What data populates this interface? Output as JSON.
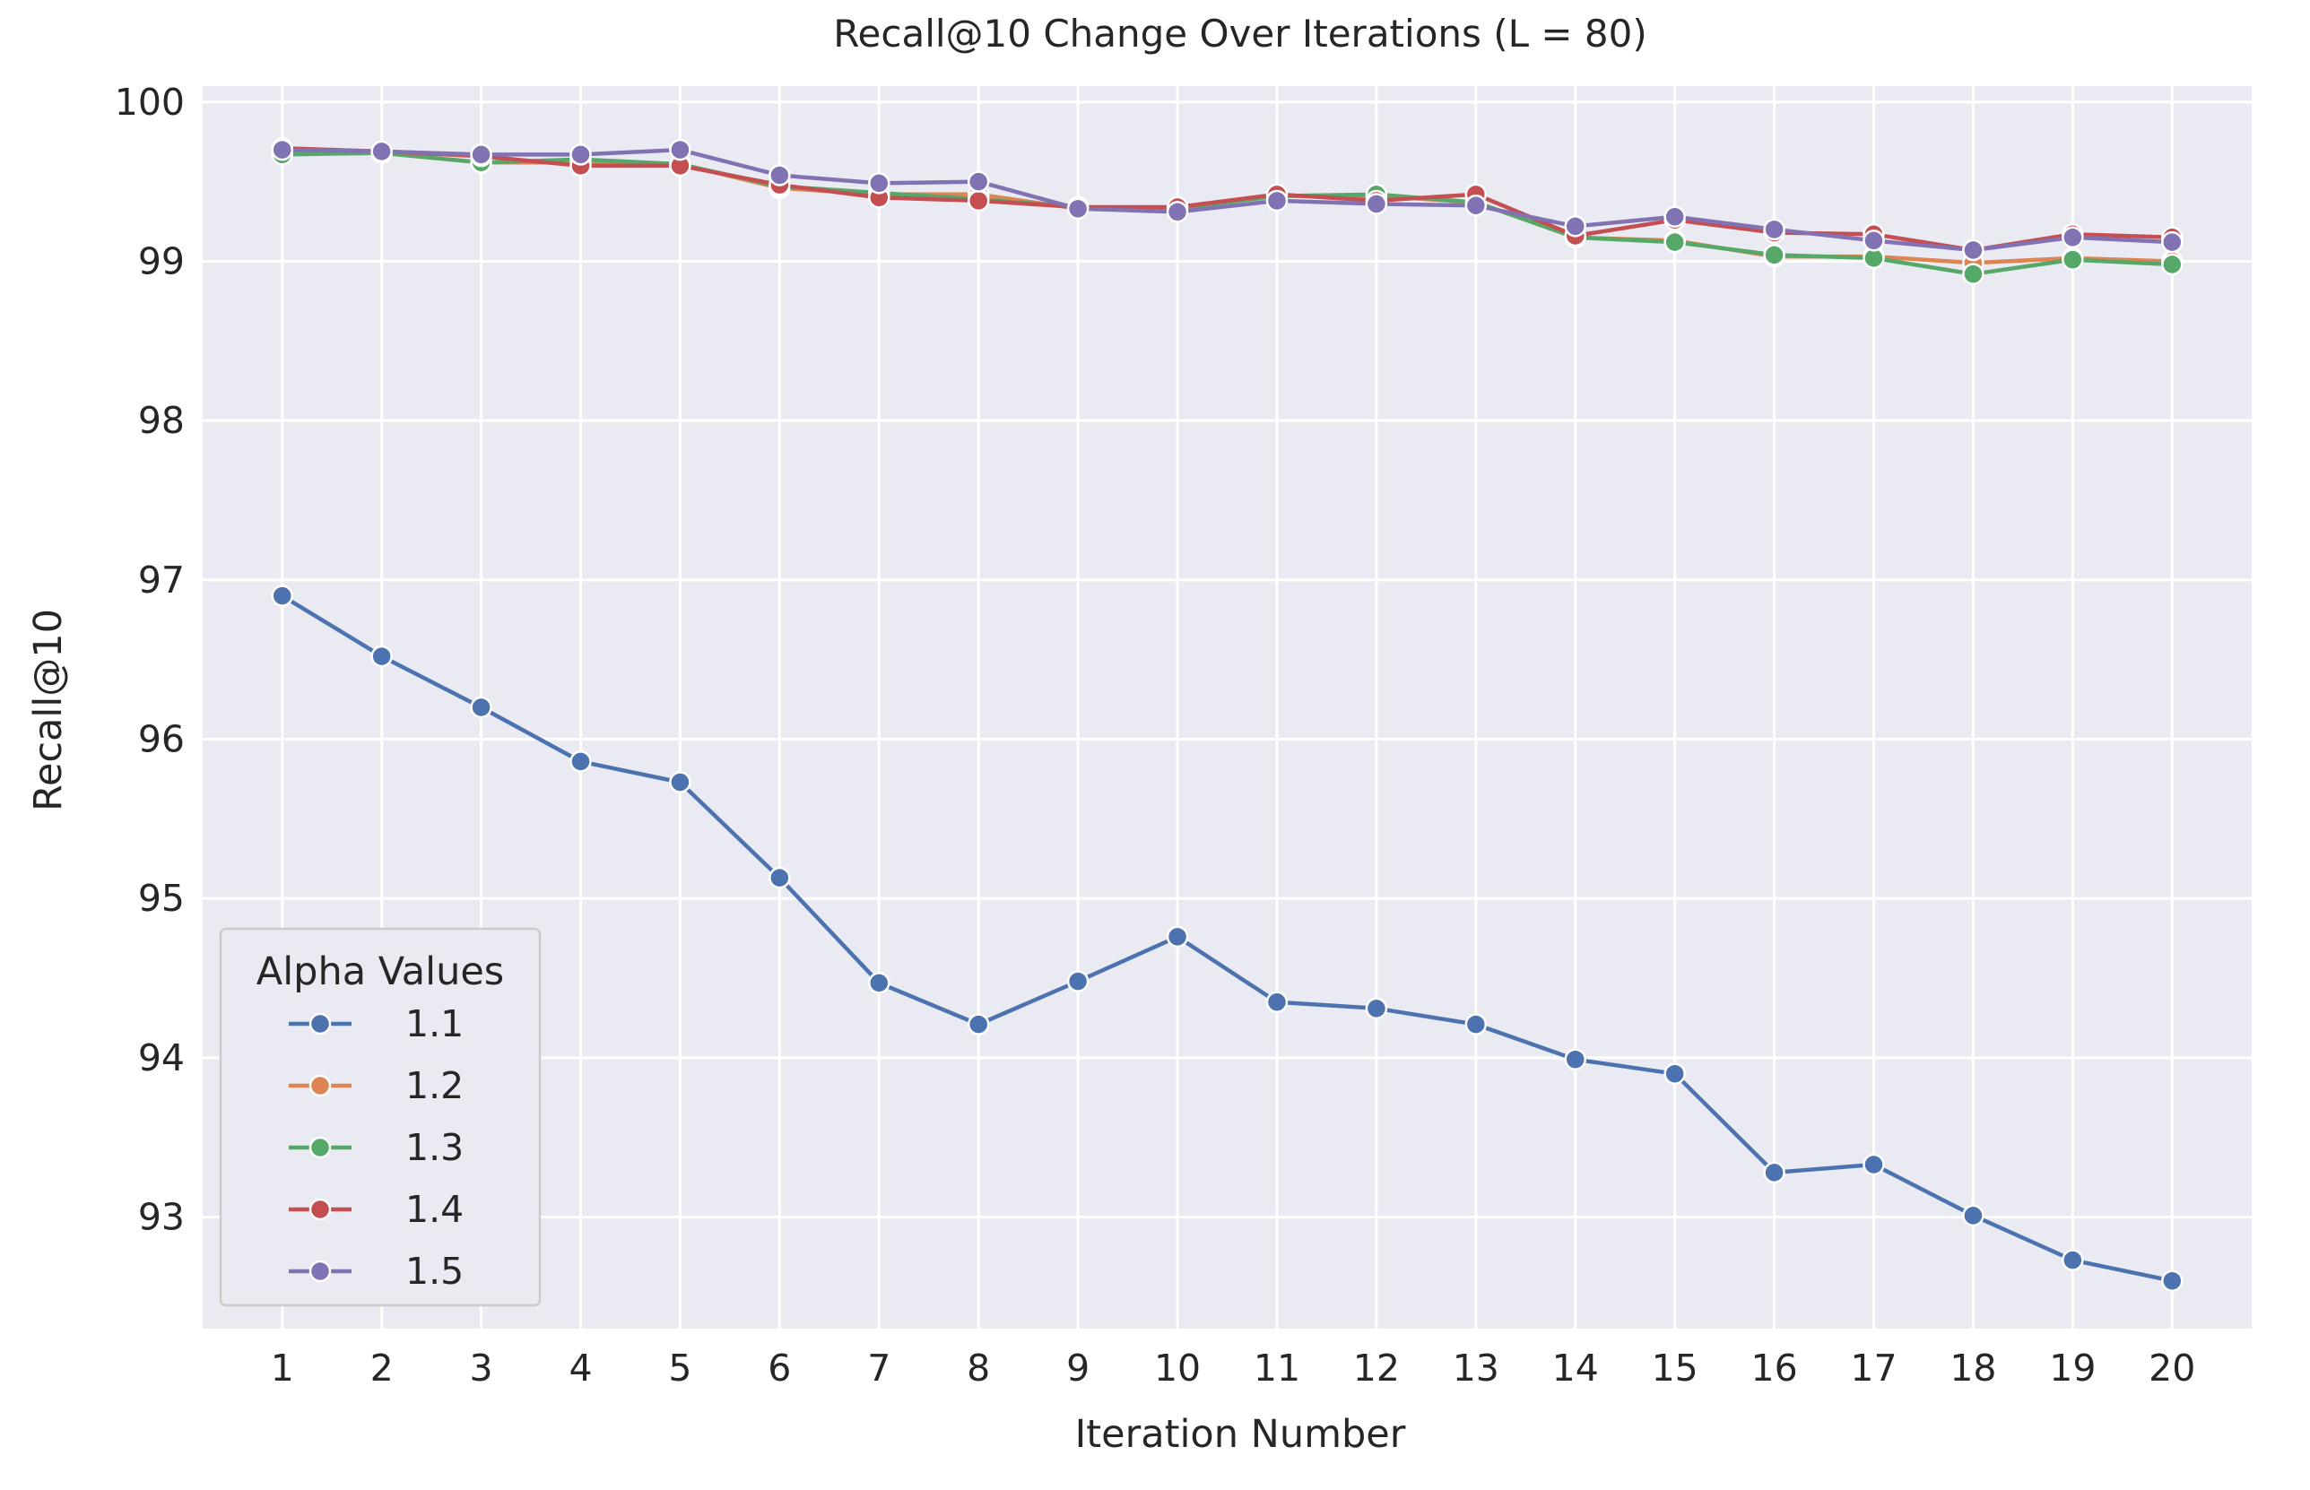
{
  "chart_data": {
    "type": "line",
    "title": "Recall@10 Change Over Iterations (L = 80)",
    "xlabel": "Iteration Number",
    "ylabel": "Recall@10",
    "x": [
      1,
      2,
      3,
      4,
      5,
      6,
      7,
      8,
      9,
      10,
      11,
      12,
      13,
      14,
      15,
      16,
      17,
      18,
      19,
      20
    ],
    "xticks": [
      "1",
      "2",
      "3",
      "4",
      "5",
      "6",
      "7",
      "8",
      "9",
      "10",
      "11",
      "12",
      "13",
      "14",
      "15",
      "16",
      "17",
      "18",
      "19",
      "20"
    ],
    "yticks": [
      93,
      94,
      95,
      96,
      97,
      98,
      99,
      100
    ],
    "ytick_labels": [
      "93",
      "94",
      "95",
      "96",
      "97",
      "98",
      "99",
      "100"
    ],
    "ylim": [
      92.3,
      100.1
    ],
    "xlim": [
      0.2,
      20.8
    ],
    "grid": true,
    "background": "#eaeaf2",
    "legend": {
      "title": "Alpha Values",
      "position": "lower-left"
    },
    "series": [
      {
        "name": "1.1",
        "color": "#4c72b0",
        "values": [
          96.9,
          96.52,
          96.2,
          95.86,
          95.73,
          95.13,
          94.47,
          94.21,
          94.48,
          94.76,
          94.35,
          94.31,
          94.21,
          93.99,
          93.9,
          93.28,
          93.33,
          93.01,
          92.73,
          92.6
        ]
      },
      {
        "name": "1.2",
        "color": "#dd8452",
        "values": [
          99.68,
          99.68,
          99.62,
          99.62,
          99.61,
          99.46,
          99.42,
          99.42,
          99.33,
          99.34,
          99.41,
          99.41,
          99.37,
          99.15,
          99.13,
          99.03,
          99.03,
          98.99,
          99.02,
          99.0
        ]
      },
      {
        "name": "1.3",
        "color": "#55a868",
        "values": [
          99.67,
          99.68,
          99.62,
          99.64,
          99.61,
          99.47,
          99.43,
          99.39,
          99.34,
          99.33,
          99.41,
          99.42,
          99.37,
          99.15,
          99.12,
          99.04,
          99.02,
          98.92,
          99.01,
          98.98
        ]
      },
      {
        "name": "1.4",
        "color": "#c44e52",
        "values": [
          99.71,
          99.69,
          99.66,
          99.6,
          99.6,
          99.48,
          99.4,
          99.38,
          99.34,
          99.34,
          99.42,
          99.38,
          99.42,
          99.16,
          99.26,
          99.18,
          99.17,
          99.07,
          99.17,
          99.15
        ]
      },
      {
        "name": "1.5",
        "color": "#8172b3",
        "values": [
          99.7,
          99.69,
          99.67,
          99.67,
          99.7,
          99.54,
          99.49,
          99.5,
          99.33,
          99.31,
          99.38,
          99.36,
          99.35,
          99.22,
          99.28,
          99.2,
          99.13,
          99.07,
          99.15,
          99.12
        ]
      }
    ]
  }
}
